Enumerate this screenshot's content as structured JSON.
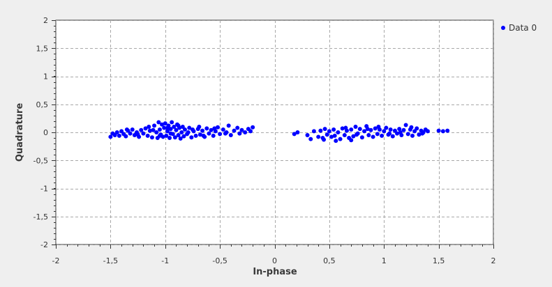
{
  "chart_data": {
    "type": "scatter",
    "title": "",
    "xlabel": "In-phase",
    "ylabel": "Quadrature",
    "xlim": [
      -2,
      2
    ],
    "ylim": [
      -2,
      2
    ],
    "xticks": [
      -2,
      -1.5,
      -1,
      -0.5,
      0,
      0.5,
      1,
      1.5,
      2
    ],
    "yticks": [
      -2,
      -1.5,
      -1,
      -0.5,
      0,
      0.5,
      1,
      1.5,
      2
    ],
    "xtick_labels": [
      "-2",
      "-1,5",
      "-1",
      "-0,5",
      "0",
      "0,5",
      "1",
      "1,5",
      "2"
    ],
    "ytick_labels": [
      "-2",
      "-1,5",
      "-1",
      "-0,5",
      "0",
      "0,5",
      "1",
      "1,5",
      "2"
    ],
    "grid": true,
    "legend_position": "top-right",
    "series": [
      {
        "name": "Data 0",
        "color": "#0000ff",
        "points": [
          [
            -1.5,
            -0.08
          ],
          [
            -1.48,
            -0.02
          ],
          [
            -1.46,
            -0.05
          ],
          [
            -1.44,
            0.0
          ],
          [
            -1.42,
            -0.06
          ],
          [
            -1.4,
            0.02
          ],
          [
            -1.38,
            -0.03
          ],
          [
            -1.36,
            -0.07
          ],
          [
            -1.34,
            0.03
          ],
          [
            -1.32,
            -0.02
          ],
          [
            -1.3,
            0.05
          ],
          [
            -1.28,
            -0.05
          ],
          [
            -1.26,
            0.0
          ],
          [
            -1.24,
            -0.08
          ],
          [
            -1.22,
            0.04
          ],
          [
            -1.2,
            -0.02
          ],
          [
            -1.18,
            0.07
          ],
          [
            -1.16,
            -0.06
          ],
          [
            -1.14,
            0.03
          ],
          [
            -1.12,
            -0.09
          ],
          [
            -1.1,
            0.12
          ],
          [
            -1.08,
            0.0
          ],
          [
            -1.07,
            -0.1
          ],
          [
            -1.06,
            0.18
          ],
          [
            -1.05,
            0.05
          ],
          [
            -1.04,
            -0.04
          ],
          [
            -1.03,
            0.14
          ],
          [
            -1.02,
            -0.08
          ],
          [
            -1.01,
            0.08
          ],
          [
            -1.0,
            0.16
          ],
          [
            -0.99,
            -0.06
          ],
          [
            -0.98,
            0.02
          ],
          [
            -0.97,
            0.12
          ],
          [
            -0.96,
            -0.1
          ],
          [
            -0.95,
            0.06
          ],
          [
            -0.94,
            0.18
          ],
          [
            -0.93,
            -0.03
          ],
          [
            -0.92,
            0.1
          ],
          [
            -0.91,
            -0.09
          ],
          [
            -0.9,
            0.04
          ],
          [
            -0.89,
            0.14
          ],
          [
            -0.88,
            -0.05
          ],
          [
            -0.87,
            0.08
          ],
          [
            -0.86,
            -0.11
          ],
          [
            -0.85,
            0.0
          ],
          [
            -0.84,
            0.1
          ],
          [
            -0.83,
            -0.07
          ],
          [
            -0.82,
            0.05
          ],
          [
            -0.8,
            -0.03
          ],
          [
            -0.78,
            0.08
          ],
          [
            -0.76,
            -0.09
          ],
          [
            -0.74,
            0.02
          ],
          [
            -0.72,
            -0.06
          ],
          [
            -0.7,
            0.06
          ],
          [
            -0.68,
            -0.04
          ],
          [
            -0.66,
            0.03
          ],
          [
            -0.64,
            -0.08
          ],
          [
            -0.62,
            0.07
          ],
          [
            -0.6,
            -0.02
          ],
          [
            -0.58,
            0.04
          ],
          [
            -0.56,
            -0.06
          ],
          [
            -0.54,
            0.02
          ],
          [
            -0.52,
            0.09
          ],
          [
            -0.5,
            -0.03
          ],
          [
            -0.47,
            0.05
          ],
          [
            -0.44,
            0.0
          ],
          [
            -0.42,
            0.12
          ],
          [
            -0.4,
            -0.05
          ],
          [
            -0.37,
            0.03
          ],
          [
            -0.34,
            0.08
          ],
          [
            -0.32,
            -0.02
          ],
          [
            -0.3,
            0.04
          ],
          [
            -0.27,
            0.0
          ],
          [
            -0.24,
            0.06
          ],
          [
            -0.22,
            0.02
          ],
          [
            -0.2,
            0.09
          ],
          [
            -1.35,
            0.05
          ],
          [
            -1.25,
            -0.04
          ],
          [
            -1.15,
            0.1
          ],
          [
            -1.05,
            -0.06
          ],
          [
            -0.95,
            -0.02
          ],
          [
            -0.75,
            0.05
          ],
          [
            -0.65,
            -0.06
          ],
          [
            -0.55,
            0.07
          ],
          [
            -0.45,
            -0.02
          ],
          [
            -1.11,
            0.04
          ],
          [
            -0.98,
            0.08
          ],
          [
            -0.88,
            0.12
          ],
          [
            -0.79,
            0.0
          ],
          [
            -0.69,
            0.1
          ],
          [
            0.18,
            -0.03
          ],
          [
            0.21,
            0.0
          ],
          [
            0.3,
            -0.05
          ],
          [
            0.33,
            -0.12
          ],
          [
            0.36,
            0.02
          ],
          [
            0.4,
            -0.08
          ],
          [
            0.42,
            0.03
          ],
          [
            0.44,
            -0.1
          ],
          [
            0.46,
            0.06
          ],
          [
            0.48,
            -0.04
          ],
          [
            0.5,
            0.02
          ],
          [
            0.52,
            -0.08
          ],
          [
            0.54,
            0.05
          ],
          [
            0.56,
            -0.15
          ],
          [
            0.58,
            0.0
          ],
          [
            0.6,
            -0.12
          ],
          [
            0.62,
            0.07
          ],
          [
            0.64,
            -0.05
          ],
          [
            0.66,
            0.03
          ],
          [
            0.68,
            -0.1
          ],
          [
            0.7,
            0.05
          ],
          [
            0.72,
            -0.07
          ],
          [
            0.74,
            0.1
          ],
          [
            0.76,
            -0.02
          ],
          [
            0.78,
            0.06
          ],
          [
            0.8,
            -0.09
          ],
          [
            0.82,
            0.02
          ],
          [
            0.84,
            0.11
          ],
          [
            0.86,
            -0.05
          ],
          [
            0.88,
            0.04
          ],
          [
            0.9,
            -0.08
          ],
          [
            0.92,
            0.07
          ],
          [
            0.94,
            -0.03
          ],
          [
            0.96,
            0.05
          ],
          [
            0.98,
            -0.06
          ],
          [
            1.0,
            0.02
          ],
          [
            1.02,
            0.08
          ],
          [
            1.04,
            -0.04
          ],
          [
            1.06,
            0.05
          ],
          [
            1.08,
            -0.07
          ],
          [
            1.1,
            0.03
          ],
          [
            1.12,
            -0.02
          ],
          [
            1.14,
            0.06
          ],
          [
            1.16,
            -0.05
          ],
          [
            1.18,
            0.04
          ],
          [
            1.2,
            0.13
          ],
          [
            1.22,
            -0.03
          ],
          [
            1.24,
            0.05
          ],
          [
            1.26,
            -0.06
          ],
          [
            1.28,
            0.02
          ],
          [
            1.3,
            0.07
          ],
          [
            1.32,
            -0.04
          ],
          [
            1.34,
            0.03
          ],
          [
            1.36,
            0.0
          ],
          [
            1.38,
            0.05
          ],
          [
            1.4,
            0.02
          ],
          [
            1.5,
            0.03
          ],
          [
            1.54,
            0.02
          ],
          [
            1.58,
            0.03
          ],
          [
            0.55,
            -0.06
          ],
          [
            0.65,
            0.08
          ],
          [
            0.75,
            -0.04
          ],
          [
            0.85,
            0.06
          ],
          [
            0.95,
            0.1
          ],
          [
            1.05,
            -0.02
          ],
          [
            1.15,
            0.0
          ],
          [
            1.25,
            0.09
          ],
          [
            1.35,
            -0.02
          ],
          [
            0.45,
            -0.13
          ],
          [
            0.7,
            -0.14
          ]
        ]
      }
    ]
  }
}
